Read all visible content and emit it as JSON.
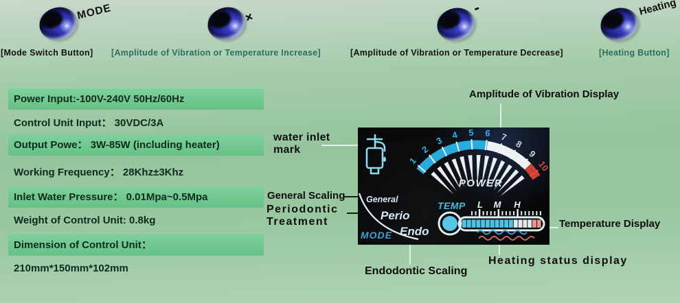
{
  "buttons": [
    {
      "label": "MODE",
      "caption": "[Mode Switch Button]"
    },
    {
      "label": "+",
      "caption": "[Amplitude of Vibration or Temperature Increase]"
    },
    {
      "label": "-",
      "caption": "[Amplitude of Vibration or Temperature Decrease]"
    },
    {
      "label": "Heating",
      "caption": "[Heating Button]"
    }
  ],
  "specs": [
    {
      "text": "Power Input:-100V-240V 50Hz/60Hz",
      "highlight": true
    },
    {
      "text": "Control Unit Input： 30VDC/3A",
      "highlight": false
    },
    {
      "text": "Output Powe： 3W-85W (including heater)",
      "highlight": true
    },
    {
      "text": "Working Frequency： 28Khz±3Khz",
      "highlight": false
    },
    {
      "text": "Inlet Water Pressure： 0.01Mpa~0.5Mpa",
      "highlight": true
    },
    {
      "text": "Weight of Control Unit: 0.8kg",
      "highlight": false
    },
    {
      "text": "Dimension of Control Unit：",
      "highlight": true
    },
    {
      "text": "210mm*150mm*102mm",
      "highlight": false
    }
  ],
  "panel": {
    "power_label": "POWER",
    "scale": [
      "1",
      "2",
      "3",
      "4",
      "5",
      "6",
      "7",
      "8",
      "9",
      "10"
    ],
    "temp_label": "TEMP",
    "temp_levels": [
      "L",
      "M",
      "H"
    ],
    "modes": [
      "General",
      "Perio",
      "Endo"
    ],
    "mode_label": "MODE"
  },
  "annotations": {
    "amplitude": "Amplitude of Vibration Display",
    "water": "water inlet mark",
    "general": "General Scaling",
    "perio": "Periodontic Treatment",
    "endo": "Endodontic Scaling",
    "temperature": "Temperature Display",
    "heating": "Heating status display"
  },
  "colors": {
    "background_green": "#95c59d",
    "spec_bar_green": "#6ec88f",
    "caption_teal": "#2d6e60",
    "gauge_blue": "#29abdd",
    "gauge_white": "#edf2f4",
    "gauge_red": "#d04036",
    "display_cyan": "#3fc0e8",
    "heat_wave_blue": "#3b9bd9",
    "heat_wave_red": "#c96a62",
    "button_blue": "#272aa0"
  }
}
